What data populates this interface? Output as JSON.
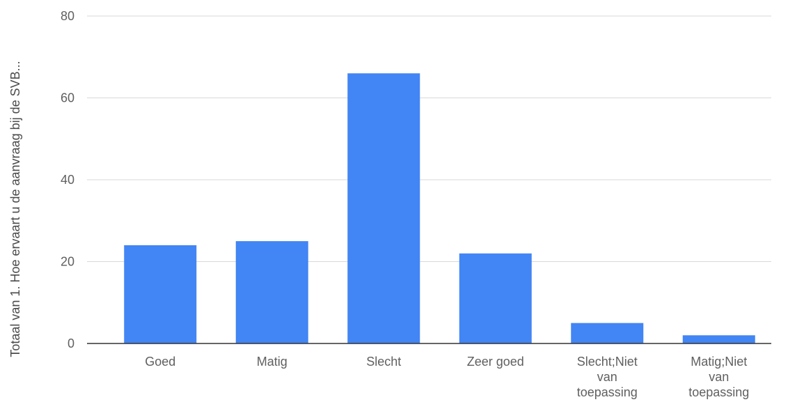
{
  "chart_data": {
    "type": "bar",
    "title": "",
    "xlabel": "",
    "ylabel": "Totaal van 1. Hoe ervaart u de aanvraag bij de SVB...",
    "categories": [
      "Goed",
      "Matig",
      "Slecht",
      "Zeer goed",
      "Slecht;Niet van toepassing",
      "Matig;Niet van toepassing"
    ],
    "category_lines": [
      [
        "Goed"
      ],
      [
        "Matig"
      ],
      [
        "Slecht"
      ],
      [
        "Zeer goed"
      ],
      [
        "Slecht;Niet",
        "van",
        "toepassing"
      ],
      [
        "Matig;Niet",
        "van",
        "toepassing"
      ]
    ],
    "values": [
      24,
      25,
      66,
      22,
      5,
      2
    ],
    "ylim": [
      0,
      80
    ],
    "yticks": [
      0,
      20,
      40,
      60,
      80
    ],
    "grid": true,
    "legend": "none",
    "bar_color": "#4285f4"
  }
}
